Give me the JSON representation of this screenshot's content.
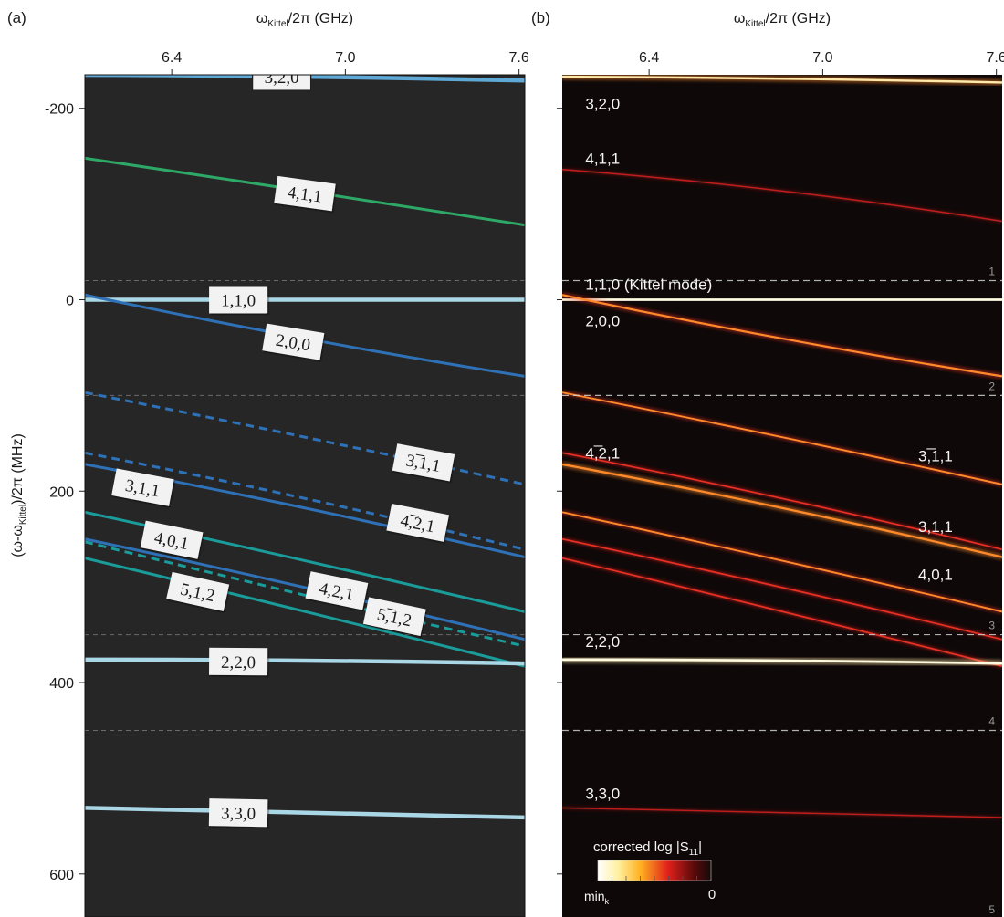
{
  "chart_data": [
    {
      "panel": "(a)",
      "type": "line",
      "xlabel_main": "ω",
      "xlabel_sub": "Kittel",
      "xlabel_tail": "/2π (GHz)",
      "ylabel_head": "(ω-ω",
      "ylabel_sub": "Kittel",
      "ylabel_tail": ")/2π (MHz)",
      "xlim": [
        6.1,
        7.62
      ],
      "ylim": [
        -235,
        645
      ],
      "y_inverted": true,
      "xticks": [
        6.4,
        7.0,
        7.6
      ],
      "xtick_labels": [
        "6.4",
        "7.0",
        "7.6"
      ],
      "yticks": [
        -200,
        0,
        200,
        400,
        600
      ],
      "ytick_labels": [
        "-200",
        "0",
        "200",
        "400",
        "600"
      ],
      "reference_lines_y": [
        -20,
        100,
        350,
        450
      ],
      "series": [
        {
          "name": "3,2,0",
          "x": [
            6.1,
            6.85,
            7.62
          ],
          "y": [
            -235,
            -233,
            -229
          ],
          "color": "#5fa9d6",
          "dash": false,
          "label_at": [
            6.78,
            -233
          ],
          "label_boxed": true
        },
        {
          "name": "4,1,1",
          "x": [
            6.1,
            6.85,
            7.62
          ],
          "y": [
            -148,
            -114,
            -78
          ],
          "color": "#2ea866",
          "dash": false,
          "label_at": [
            6.86,
            -111
          ]
        },
        {
          "name": "1,1,0",
          "x": [
            6.1,
            7.62
          ],
          "y": [
            0,
            0
          ],
          "color": "#a9d7e6",
          "dash": false,
          "label_at": [
            6.63,
            0
          ]
        },
        {
          "name": "2,0,0",
          "x": [
            6.1,
            6.85,
            7.62
          ],
          "y": [
            -5,
            40,
            80
          ],
          "color": "#2e71b6",
          "dash": false,
          "label_at": [
            6.82,
            44
          ]
        },
        {
          "name": "3,̅1,1",
          "x": [
            6.1,
            6.85,
            7.62
          ],
          "y": [
            97,
            143,
            193
          ],
          "color": "#2e71b6",
          "dash": true,
          "label_at": [
            7.27,
            170
          ]
        },
        {
          "name": "3,1,1",
          "x": [
            6.1,
            6.85,
            7.62
          ],
          "y": [
            172,
            217,
            269
          ],
          "color": "#2e71b6",
          "dash": false,
          "label_at": [
            6.3,
            196
          ]
        },
        {
          "name": "4,̅2,1",
          "x": [
            6.1,
            6.85,
            7.62
          ],
          "y": [
            160,
            207,
            261
          ],
          "color": "#2e71b6",
          "dash": true,
          "label_at": [
            7.25,
            233
          ]
        },
        {
          "name": "4,0,1",
          "x": [
            6.1,
            6.85,
            7.62
          ],
          "y": [
            222,
            272,
            326
          ],
          "color": "#199c9a",
          "dash": false,
          "label_at": [
            6.4,
            251
          ]
        },
        {
          "name": "4,2,1",
          "x": [
            6.1,
            6.85,
            7.62
          ],
          "y": [
            250,
            300,
            355
          ],
          "color": "#2e71b6",
          "dash": false,
          "label_at": [
            6.97,
            304
          ]
        },
        {
          "name": "5,̅1,2",
          "x": [
            6.1,
            6.85,
            7.62
          ],
          "y": [
            253,
            308,
            362
          ],
          "color": "#199c9a",
          "dash": true,
          "label_at": [
            7.17,
            331
          ]
        },
        {
          "name": "5,1,2",
          "x": [
            6.1,
            6.85,
            7.62
          ],
          "y": [
            270,
            325,
            383
          ],
          "color": "#199c9a",
          "dash": false,
          "label_at": [
            6.49,
            305
          ]
        },
        {
          "name": "2,2,0",
          "x": [
            6.1,
            6.85,
            7.62
          ],
          "y": [
            376,
            377,
            380
          ],
          "color": "#a9d7e6",
          "dash": false,
          "label_at": [
            6.63,
            378
          ]
        },
        {
          "name": "3,3,0",
          "x": [
            6.1,
            6.85,
            7.62
          ],
          "y": [
            531,
            536,
            541
          ],
          "color": "#a9d7e6",
          "dash": false,
          "label_at": [
            6.63,
            536
          ]
        }
      ]
    },
    {
      "panel": "(b)",
      "type": "heatmap",
      "xlabel_main": "ω",
      "xlabel_sub": "Kittel",
      "xlabel_tail": "/2π (GHz)",
      "xlim": [
        6.1,
        7.62
      ],
      "ylim": [
        -235,
        645
      ],
      "xticks": [
        6.4,
        7.0,
        7.6
      ],
      "xtick_labels": [
        "6.4",
        "7.0",
        "7.6"
      ],
      "yticks": [
        -200,
        0,
        200,
        400,
        600
      ],
      "reference_lines_y": [
        -20,
        100,
        350,
        450
      ],
      "region_labels": [
        "1",
        "2",
        "3",
        "4",
        "5"
      ],
      "colorbar_title_head": "corrected log |S",
      "colorbar_title_sub": "11",
      "colorbar_title_tail": "|",
      "colorbar_min_head": "min",
      "colorbar_min_sub": "k",
      "colorbar_max": "0",
      "mode_labels": [
        {
          "text": "3,2,0",
          "at": [
            6.18,
            -205
          ]
        },
        {
          "text": "4,1,1",
          "at": [
            6.18,
            -148
          ]
        },
        {
          "text": "1,1,0 (Kittel mode)",
          "at": [
            6.18,
            -16
          ]
        },
        {
          "text": "2,0,0",
          "at": [
            6.18,
            22
          ]
        },
        {
          "text": "4,̅2,1",
          "at": [
            6.18,
            160
          ]
        },
        {
          "text": "3,̅1,1",
          "at": [
            7.33,
            163
          ]
        },
        {
          "text": "3,1,1",
          "at": [
            7.33,
            237
          ]
        },
        {
          "text": "4,0,1",
          "at": [
            7.33,
            287
          ]
        },
        {
          "text": "2,2,0",
          "at": [
            6.18,
            357
          ]
        },
        {
          "text": "3,3,0",
          "at": [
            6.18,
            516
          ]
        }
      ],
      "traces": [
        {
          "x": [
            6.1,
            6.85,
            7.62
          ],
          "y": [
            -233,
            -231,
            -227
          ],
          "intensity": 0.8
        },
        {
          "x": [
            6.1,
            6.85,
            7.62
          ],
          "y": [
            -136,
            -114,
            -82
          ],
          "intensity": 0.35
        },
        {
          "x": [
            6.1,
            7.62
          ],
          "y": [
            0,
            0
          ],
          "intensity": 1.0
        },
        {
          "x": [
            6.1,
            6.85,
            7.62
          ],
          "y": [
            -5,
            40,
            80
          ],
          "intensity": 0.7
        },
        {
          "x": [
            6.1,
            6.85,
            7.62
          ],
          "y": [
            97,
            143,
            193
          ],
          "intensity": 0.55
        },
        {
          "x": [
            6.1,
            6.85,
            7.62
          ],
          "y": [
            160,
            207,
            261
          ],
          "intensity": 0.45
        },
        {
          "x": [
            6.1,
            6.85,
            7.62
          ],
          "y": [
            172,
            217,
            269
          ],
          "intensity": 0.75
        },
        {
          "x": [
            6.1,
            6.85,
            7.62
          ],
          "y": [
            222,
            272,
            326
          ],
          "intensity": 0.55
        },
        {
          "x": [
            6.1,
            6.85,
            7.62
          ],
          "y": [
            250,
            300,
            355
          ],
          "intensity": 0.5
        },
        {
          "x": [
            6.1,
            6.85,
            7.62
          ],
          "y": [
            270,
            325,
            383
          ],
          "intensity": 0.5
        },
        {
          "x": [
            6.1,
            6.85,
            7.62
          ],
          "y": [
            376,
            377,
            380
          ],
          "intensity": 0.95
        },
        {
          "x": [
            6.1,
            6.85,
            7.62
          ],
          "y": [
            531,
            536,
            541
          ],
          "intensity": 0.3
        }
      ]
    }
  ]
}
